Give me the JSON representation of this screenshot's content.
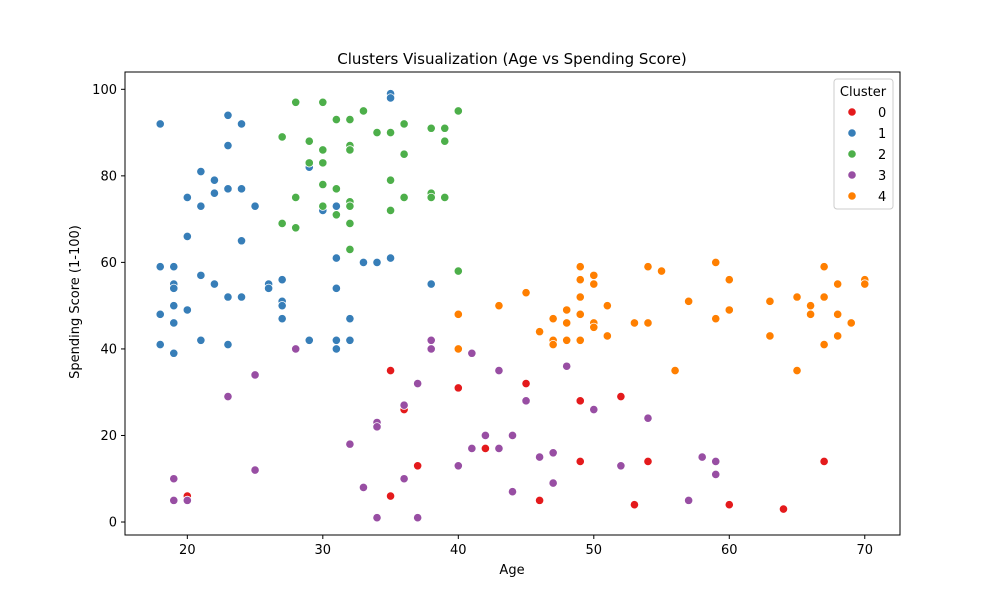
{
  "chart_data": {
    "type": "scatter",
    "title": "Clusters Visualization (Age vs Spending Score)",
    "xlabel": "Age",
    "ylabel": "Spending Score (1-100)",
    "xlim": [
      15.4,
      72.6
    ],
    "ylim": [
      -3,
      104
    ],
    "xticks": [
      20,
      30,
      40,
      50,
      60,
      70
    ],
    "yticks": [
      0,
      20,
      40,
      60,
      80,
      100
    ],
    "legend": {
      "title": "Cluster",
      "placement": "top-right"
    },
    "colors": {
      "0": "#e41a1c",
      "1": "#377eb8",
      "2": "#4daf4a",
      "3": "#984ea3",
      "4": "#ff7f00"
    },
    "series": [
      {
        "name": "0",
        "points": [
          [
            20,
            6
          ],
          [
            35,
            35
          ],
          [
            35,
            6
          ],
          [
            36,
            26
          ],
          [
            37,
            13
          ],
          [
            40,
            31
          ],
          [
            42,
            17
          ],
          [
            45,
            32
          ],
          [
            46,
            5
          ],
          [
            49,
            28
          ],
          [
            49,
            14
          ],
          [
            52,
            29
          ],
          [
            53,
            4
          ],
          [
            54,
            14
          ],
          [
            60,
            4
          ],
          [
            64,
            3
          ],
          [
            67,
            14
          ]
        ]
      },
      {
        "name": "1",
        "points": [
          [
            18,
            92
          ],
          [
            18,
            59
          ],
          [
            18,
            48
          ],
          [
            18,
            41
          ],
          [
            19,
            59
          ],
          [
            19,
            55
          ],
          [
            19,
            54
          ],
          [
            19,
            50
          ],
          [
            19,
            46
          ],
          [
            19,
            39
          ],
          [
            20,
            75
          ],
          [
            20,
            66
          ],
          [
            20,
            49
          ],
          [
            21,
            81
          ],
          [
            21,
            73
          ],
          [
            21,
            57
          ],
          [
            21,
            42
          ],
          [
            22,
            79
          ],
          [
            22,
            76
          ],
          [
            22,
            55
          ],
          [
            23,
            94
          ],
          [
            23,
            87
          ],
          [
            23,
            77
          ],
          [
            23,
            52
          ],
          [
            23,
            41
          ],
          [
            24,
            92
          ],
          [
            24,
            77
          ],
          [
            24,
            65
          ],
          [
            24,
            52
          ],
          [
            25,
            73
          ],
          [
            26,
            55
          ],
          [
            26,
            54
          ],
          [
            27,
            56
          ],
          [
            27,
            51
          ],
          [
            27,
            50
          ],
          [
            27,
            47
          ],
          [
            29,
            82
          ],
          [
            29,
            42
          ],
          [
            30,
            72
          ],
          [
            31,
            73
          ],
          [
            31,
            61
          ],
          [
            31,
            54
          ],
          [
            31,
            42
          ],
          [
            31,
            40
          ],
          [
            32,
            47
          ],
          [
            32,
            42
          ],
          [
            33,
            60
          ],
          [
            34,
            60
          ],
          [
            35,
            99
          ],
          [
            35,
            98
          ],
          [
            35,
            61
          ],
          [
            38,
            55
          ]
        ]
      },
      {
        "name": "2",
        "points": [
          [
            27,
            89
          ],
          [
            27,
            69
          ],
          [
            28,
            97
          ],
          [
            28,
            75
          ],
          [
            28,
            68
          ],
          [
            29,
            88
          ],
          [
            29,
            83
          ],
          [
            30,
            97
          ],
          [
            30,
            86
          ],
          [
            30,
            83
          ],
          [
            30,
            78
          ],
          [
            30,
            73
          ],
          [
            31,
            93
          ],
          [
            31,
            77
          ],
          [
            31,
            71
          ],
          [
            32,
            93
          ],
          [
            32,
            87
          ],
          [
            32,
            86
          ],
          [
            32,
            74
          ],
          [
            32,
            73
          ],
          [
            32,
            69
          ],
          [
            32,
            63
          ],
          [
            33,
            95
          ],
          [
            34,
            90
          ],
          [
            35,
            90
          ],
          [
            35,
            79
          ],
          [
            35,
            72
          ],
          [
            36,
            92
          ],
          [
            36,
            85
          ],
          [
            36,
            75
          ],
          [
            38,
            91
          ],
          [
            38,
            76
          ],
          [
            38,
            75
          ],
          [
            39,
            91
          ],
          [
            39,
            88
          ],
          [
            39,
            75
          ],
          [
            40,
            95
          ],
          [
            40,
            58
          ]
        ]
      },
      {
        "name": "3",
        "points": [
          [
            19,
            10
          ],
          [
            19,
            5
          ],
          [
            20,
            5
          ],
          [
            23,
            29
          ],
          [
            25,
            34
          ],
          [
            25,
            12
          ],
          [
            28,
            40
          ],
          [
            32,
            18
          ],
          [
            33,
            8
          ],
          [
            34,
            23
          ],
          [
            34,
            22
          ],
          [
            34,
            1
          ],
          [
            36,
            27
          ],
          [
            36,
            10
          ],
          [
            37,
            32
          ],
          [
            37,
            1
          ],
          [
            38,
            42
          ],
          [
            38,
            40
          ],
          [
            40,
            13
          ],
          [
            41,
            39
          ],
          [
            41,
            17
          ],
          [
            42,
            20
          ],
          [
            43,
            35
          ],
          [
            43,
            17
          ],
          [
            44,
            20
          ],
          [
            44,
            7
          ],
          [
            45,
            28
          ],
          [
            46,
            15
          ],
          [
            47,
            16
          ],
          [
            47,
            9
          ],
          [
            48,
            36
          ],
          [
            50,
            26
          ],
          [
            52,
            13
          ],
          [
            54,
            24
          ],
          [
            57,
            5
          ],
          [
            58,
            15
          ],
          [
            59,
            14
          ],
          [
            59,
            11
          ]
        ]
      },
      {
        "name": "4",
        "points": [
          [
            40,
            48
          ],
          [
            40,
            40
          ],
          [
            43,
            50
          ],
          [
            45,
            53
          ],
          [
            46,
            44
          ],
          [
            47,
            47
          ],
          [
            47,
            42
          ],
          [
            47,
            41
          ],
          [
            48,
            49
          ],
          [
            48,
            46
          ],
          [
            48,
            42
          ],
          [
            49,
            59
          ],
          [
            49,
            56
          ],
          [
            49,
            52
          ],
          [
            49,
            48
          ],
          [
            49,
            42
          ],
          [
            50,
            57
          ],
          [
            50,
            55
          ],
          [
            50,
            46
          ],
          [
            50,
            45
          ],
          [
            51,
            50
          ],
          [
            51,
            43
          ],
          [
            53,
            46
          ],
          [
            54,
            59
          ],
          [
            54,
            46
          ],
          [
            55,
            58
          ],
          [
            56,
            35
          ],
          [
            57,
            51
          ],
          [
            59,
            60
          ],
          [
            59,
            47
          ],
          [
            60,
            56
          ],
          [
            60,
            49
          ],
          [
            63,
            51
          ],
          [
            63,
            43
          ],
          [
            65,
            52
          ],
          [
            65,
            35
          ],
          [
            66,
            50
          ],
          [
            66,
            48
          ],
          [
            67,
            59
          ],
          [
            67,
            52
          ],
          [
            67,
            41
          ],
          [
            68,
            55
          ],
          [
            68,
            48
          ],
          [
            68,
            43
          ],
          [
            69,
            46
          ],
          [
            70,
            56
          ],
          [
            70,
            55
          ]
        ]
      }
    ]
  }
}
